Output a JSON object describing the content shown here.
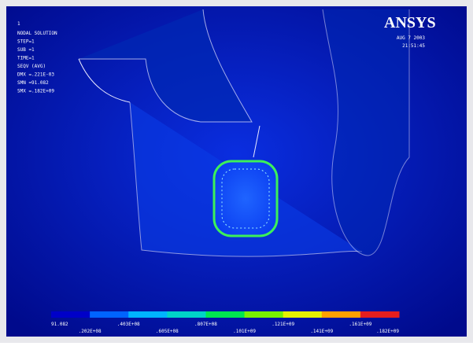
{
  "plot_number": "1",
  "info": [
    "NODAL SOLUTION",
    "STEP=1",
    "SUB =1",
    "TIME=1",
    "SEQV     (AVG)",
    "DMX =.221E-03",
    "SMN =91.082",
    "SMX =.182E+09"
  ],
  "logo": "ANSYS",
  "date": "AUG  7 2003",
  "time": "21:51:45",
  "legend": {
    "colors": [
      "#0000c8",
      "#0064ff",
      "#00b4ff",
      "#00d2c8",
      "#00e650",
      "#78f000",
      "#e6f000",
      "#ffa000",
      "#e61e1e"
    ],
    "top_labels": [
      "91.082",
      ".403E+08",
      ".807E+08",
      ".121E+09",
      ".161E+09"
    ],
    "bottom_labels": [
      ".202E+08",
      ".605E+08",
      ".101E+09",
      ".141E+09",
      ".182E+09"
    ]
  }
}
